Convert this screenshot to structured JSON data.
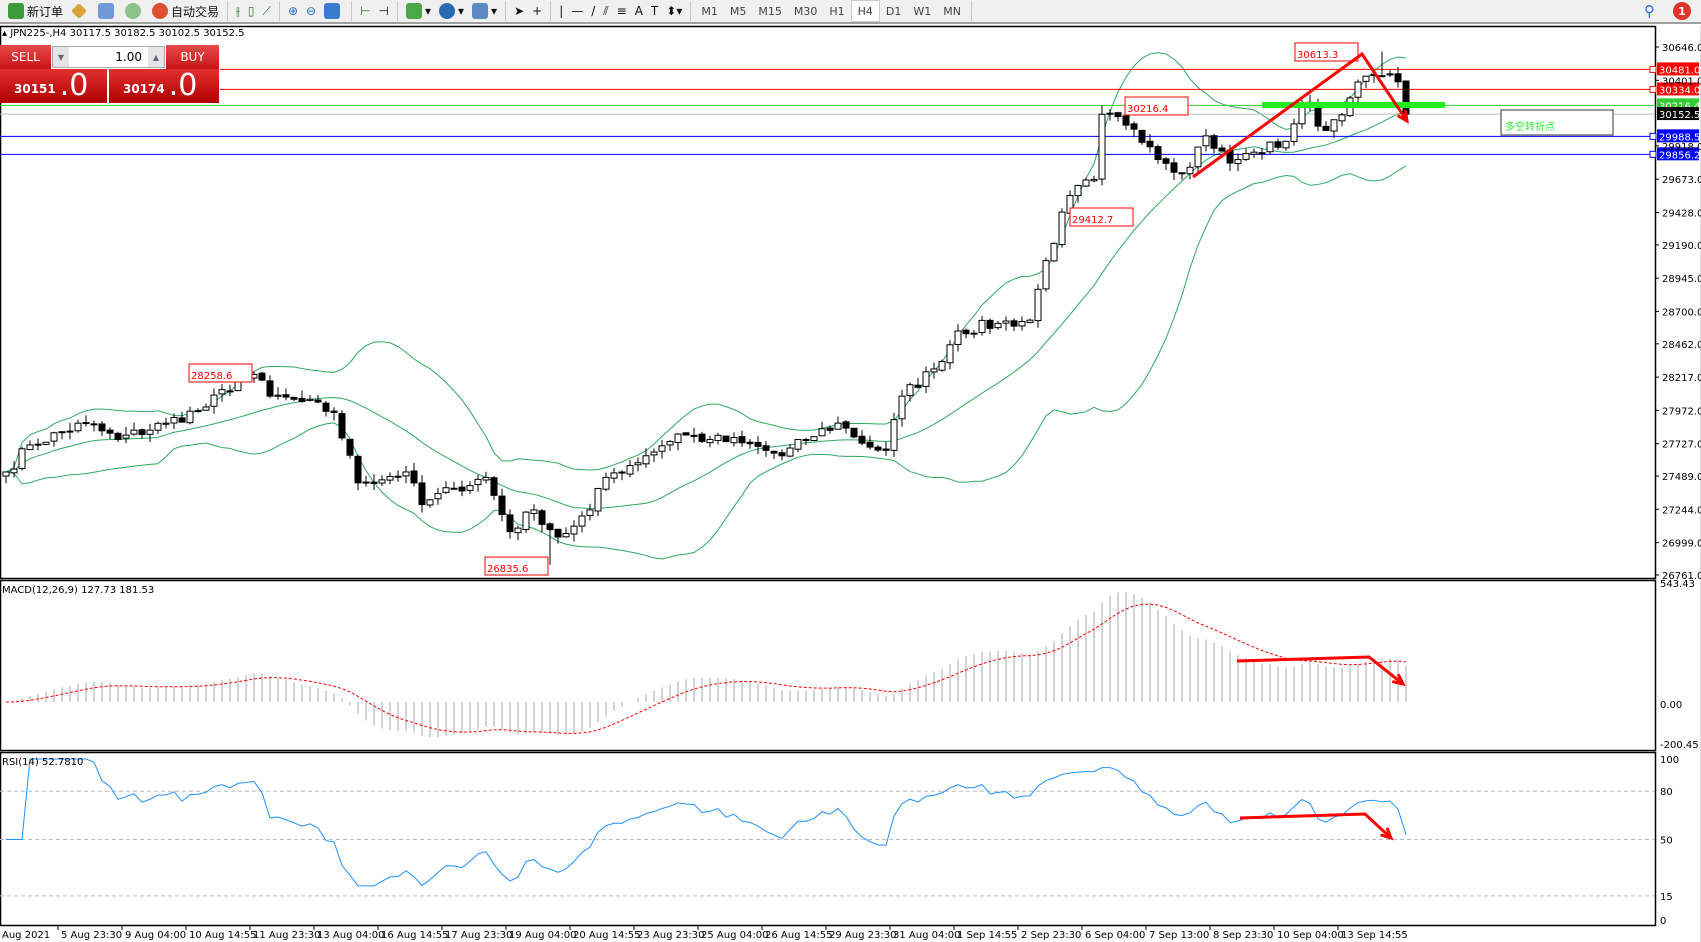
{
  "toolbar": {
    "new_order": "新订单",
    "auto_trading": "自动交易",
    "icons": [
      "new-order-icon",
      "expert-icon",
      "market-watch-icon",
      "signal-icon",
      "auto-trading-icon",
      "bar-chart-icon",
      "candlestick-icon",
      "line-chart-icon",
      "zoom-in-icon",
      "zoom-out-icon",
      "tile-icon",
      "scroll-icon",
      "shift-icon",
      "indicators-icon",
      "periods-icon",
      "templates-icon",
      "cursor-icon",
      "crosshair-icon",
      "vertical-line-icon",
      "horizontal-line-icon",
      "trendline-icon",
      "channel-icon",
      "fibonacci-icon",
      "text-icon",
      "label-icon",
      "arrows-icon"
    ],
    "timeframes": [
      "M1",
      "M5",
      "M15",
      "M30",
      "H1",
      "H4",
      "D1",
      "W1",
      "MN"
    ],
    "active_timeframe": "H4",
    "notifications": "1"
  },
  "chart": {
    "title": "JPN225-,H4  30117.5 30182.5 30102.5 30152.5",
    "trade_panel": {
      "sell": "SELL",
      "buy": "BUY",
      "lot": "1.00",
      "bid_main": "30151",
      "bid_frac": ".0",
      "ask_main": "30174",
      "ask_frac": ".0"
    },
    "price_axis": [
      "30646.0",
      "30401.0",
      "29918.0",
      "29673.0",
      "29428.0",
      "29190.0",
      "28945.0",
      "28700.0",
      "28462.0",
      "28217.0",
      "27972.0",
      "27727.0",
      "27489.0",
      "27244.0",
      "26999.0",
      "26761.0"
    ],
    "levels": [
      {
        "price": 30481.0,
        "label": "30481.0",
        "color": "#ff0000"
      },
      {
        "price": 30334.0,
        "label": "30334.0",
        "color": "#ff0000"
      },
      {
        "price": 30216.4,
        "label": "30216.4",
        "color": "#33cc33"
      },
      {
        "price": 30152.5,
        "label": "30152.5",
        "color": "#000000"
      },
      {
        "price": 29988.5,
        "label": "29988.5",
        "color": "#0000ff"
      },
      {
        "price": 29856.2,
        "label": "29856.2",
        "color": "#0000ff"
      }
    ],
    "annotations": [
      "30613.3",
      "30216.4",
      "29412.7",
      "28258.6",
      "26835.6"
    ],
    "pivot_label": "多空转折点",
    "closes": [
      [
        0,
        27519
      ],
      [
        3,
        27718
      ],
      [
        10,
        27878
      ],
      [
        14,
        27758
      ],
      [
        20,
        27878
      ],
      [
        25,
        27997
      ],
      [
        29,
        28197
      ],
      [
        31,
        28237
      ],
      [
        33,
        28077
      ],
      [
        37,
        28037
      ],
      [
        41,
        27957
      ],
      [
        44,
        27439
      ],
      [
        50,
        27519
      ],
      [
        52,
        27279
      ],
      [
        56,
        27399
      ],
      [
        60,
        27479
      ],
      [
        63,
        27080
      ],
      [
        66,
        27240
      ],
      [
        69,
        27040
      ],
      [
        71,
        27120
      ],
      [
        73,
        27240
      ],
      [
        75,
        27479
      ],
      [
        80,
        27638
      ],
      [
        84,
        27798
      ],
      [
        88,
        27758
      ],
      [
        92,
        27734
      ],
      [
        97,
        27638
      ],
      [
        100,
        27758
      ],
      [
        104,
        27878
      ],
      [
        108,
        27702
      ],
      [
        110,
        27678
      ],
      [
        112,
        28077
      ],
      [
        116,
        28277
      ],
      [
        119,
        28556
      ],
      [
        124,
        28612
      ],
      [
        128,
        28636
      ],
      [
        130,
        29074
      ],
      [
        133,
        29553
      ],
      [
        136,
        29672
      ],
      [
        137,
        30151
      ],
      [
        140,
        30071
      ],
      [
        143,
        29912
      ],
      [
        147,
        29713
      ],
      [
        150,
        29992
      ],
      [
        153,
        29792
      ],
      [
        156,
        29872
      ],
      [
        160,
        29952
      ],
      [
        162,
        30231
      ],
      [
        165,
        30032
      ],
      [
        168,
        30271
      ],
      [
        170,
        30431
      ],
      [
        172,
        30431
      ],
      [
        174,
        30390
      ],
      [
        175,
        30152.5
      ]
    ],
    "colors": {
      "bands": "#2eaa5e",
      "bull": "#ffffff",
      "bear": "#000000",
      "arrow": "#ff0000",
      "pivot_bar": "#22ee22"
    }
  },
  "macd": {
    "label": "MACD(12,26,9) 127.73 181.53",
    "axis": [
      "543.43",
      "0.00",
      "-200.45"
    ]
  },
  "rsi": {
    "label": "RSI(14) 52.7810",
    "axis": [
      "100",
      "80",
      "50",
      "15",
      "0"
    ]
  },
  "time_axis": [
    "Aug 2021",
    "5 Aug 23:30",
    "9 Aug 04:00",
    "10 Aug 14:55",
    "11 Aug 23:30",
    "13 Aug 04:00",
    "16 Aug 14:55",
    "17 Aug 23:30",
    "19 Aug 04:00",
    "20 Aug 14:55",
    "23 Aug 23:30",
    "25 Aug 04:00",
    "26 Aug 14:55",
    "29 Aug 23:30",
    "31 Aug 04:00",
    "1 Sep 14:55",
    "2 Sep 23:30",
    "6 Sep 04:00",
    "7 Sep 13:00",
    "8 Sep 23:30",
    "10 Sep 04:00",
    "13 Sep 14:55"
  ]
}
